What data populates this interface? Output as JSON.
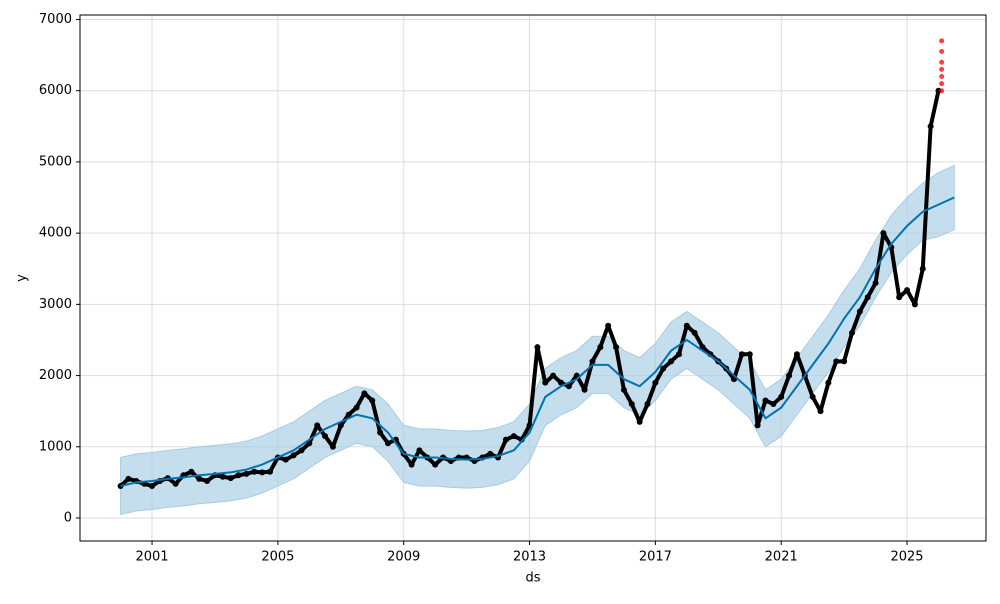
{
  "chart_data": {
    "type": "forecast",
    "xlabel": "ds",
    "ylabel": "y",
    "xlim": [
      1998.71,
      2027.51
    ],
    "ylim": [
      -323,
      7063
    ],
    "xticks": [
      2001,
      2005,
      2009,
      2013,
      2017,
      2021,
      2025
    ],
    "yticks": [
      0,
      1000,
      2000,
      3000,
      4000,
      5000,
      6000,
      7000
    ],
    "grid": true,
    "observed": {
      "color": "#000000",
      "x": [
        2000,
        2000.25,
        2000.5,
        2000.75,
        2001,
        2001.25,
        2001.5,
        2001.75,
        2002,
        2002.25,
        2002.5,
        2002.75,
        2003,
        2003.25,
        2003.5,
        2003.75,
        2004,
        2004.25,
        2004.5,
        2004.75,
        2005,
        2005.25,
        2005.5,
        2005.75,
        2006,
        2006.25,
        2006.5,
        2006.75,
        2007,
        2007.25,
        2007.5,
        2007.75,
        2008,
        2008.25,
        2008.5,
        2008.75,
        2009,
        2009.25,
        2009.5,
        2009.75,
        2010,
        2010.25,
        2010.5,
        2010.75,
        2011,
        2011.25,
        2011.5,
        2011.75,
        2012,
        2012.25,
        2012.5,
        2012.75,
        2013,
        2013.25,
        2013.5,
        2013.75,
        2014,
        2014.25,
        2014.5,
        2014.75,
        2015,
        2015.25,
        2015.5,
        2015.75,
        2016,
        2016.25,
        2016.5,
        2016.75,
        2017,
        2017.25,
        2017.5,
        2017.75,
        2018,
        2018.25,
        2018.5,
        2018.75,
        2019,
        2019.25,
        2019.5,
        2019.75,
        2020,
        2020.25,
        2020.5,
        2020.75,
        2021,
        2021.25,
        2021.5,
        2021.75,
        2022,
        2022.25,
        2022.5,
        2022.75,
        2023,
        2023.25,
        2023.5,
        2023.75,
        2024,
        2024.25,
        2024.5,
        2024.75,
        2025,
        2025.25,
        2025.5,
        2025.75,
        2026
      ],
      "values": [
        450,
        550,
        520,
        480,
        450,
        520,
        560,
        480,
        600,
        650,
        550,
        520,
        600,
        580,
        560,
        600,
        620,
        650,
        640,
        650,
        850,
        820,
        880,
        950,
        1050,
        1300,
        1150,
        1000,
        1300,
        1450,
        1550,
        1750,
        1650,
        1200,
        1050,
        1100,
        900,
        750,
        950,
        850,
        750,
        850,
        800,
        850,
        850,
        800,
        850,
        900,
        850,
        1100,
        1150,
        1100,
        1300,
        2400,
        1900,
        2000,
        1900,
        1850,
        2000,
        1800,
        2200,
        2400,
        2700,
        2400,
        1800,
        1600,
        1350,
        1600,
        1900,
        2100,
        2200,
        2300,
        2700,
        2600,
        2400,
        2300,
        2200,
        2100,
        1950,
        2300,
        2300,
        1300,
        1650,
        1600,
        1700,
        2000,
        2300,
        2000,
        1700,
        1500,
        1900,
        2200,
        2200,
        2600,
        2900,
        3100,
        3300,
        4000,
        3800,
        3100,
        3200,
        3000,
        3500,
        5500,
        6000
      ]
    },
    "forecast": {
      "color": "#0072B2",
      "band_color": "#a6cce3",
      "x": [
        2000,
        2000.5,
        2001,
        2001.5,
        2002,
        2002.5,
        2003,
        2003.5,
        2004,
        2004.5,
        2005,
        2005.5,
        2006,
        2006.5,
        2007,
        2007.5,
        2008,
        2008.5,
        2009,
        2009.5,
        2010,
        2010.5,
        2011,
        2011.5,
        2012,
        2012.5,
        2013,
        2013.5,
        2014,
        2014.5,
        2015,
        2015.5,
        2016,
        2016.5,
        2017,
        2017.5,
        2018,
        2018.5,
        2019,
        2019.5,
        2020,
        2020.5,
        2021,
        2021.5,
        2022,
        2022.5,
        2023,
        2023.5,
        2024,
        2024.5,
        2025,
        2025.5,
        2026,
        2026.5
      ],
      "values": [
        450,
        500,
        520,
        550,
        570,
        600,
        620,
        640,
        680,
        750,
        850,
        950,
        1100,
        1250,
        1350,
        1450,
        1400,
        1200,
        900,
        850,
        850,
        830,
        820,
        830,
        870,
        950,
        1200,
        1700,
        1850,
        1950,
        2150,
        2150,
        1950,
        1850,
        2050,
        2350,
        2500,
        2350,
        2200,
        2000,
        1800,
        1400,
        1550,
        1850,
        2150,
        2450,
        2800,
        3100,
        3500,
        3850,
        4100,
        4300,
        4400,
        4500
      ],
      "lower": [
        50,
        100,
        120,
        150,
        170,
        200,
        220,
        240,
        280,
        350,
        450,
        550,
        700,
        850,
        950,
        1050,
        1000,
        800,
        500,
        450,
        450,
        430,
        420,
        430,
        470,
        550,
        800,
        1300,
        1450,
        1550,
        1750,
        1750,
        1550,
        1450,
        1650,
        1950,
        2100,
        1950,
        1800,
        1600,
        1400,
        1000,
        1150,
        1450,
        1750,
        2050,
        2400,
        2700,
        3100,
        3450,
        3700,
        3900,
        3950,
        4050
      ],
      "upper": [
        850,
        900,
        920,
        950,
        970,
        1000,
        1020,
        1040,
        1080,
        1150,
        1250,
        1350,
        1500,
        1650,
        1750,
        1850,
        1800,
        1600,
        1300,
        1250,
        1250,
        1230,
        1220,
        1230,
        1270,
        1350,
        1600,
        2100,
        2250,
        2350,
        2550,
        2550,
        2350,
        2250,
        2450,
        2750,
        2900,
        2750,
        2600,
        2400,
        2200,
        1800,
        1950,
        2250,
        2550,
        2850,
        3200,
        3500,
        3900,
        4250,
        4500,
        4700,
        4850,
        4950
      ]
    },
    "future": {
      "color": "#ff0000",
      "x": [
        2026.1,
        2026.1,
        2026.1,
        2026.1,
        2026.1,
        2026.1,
        2026.1
      ],
      "values": [
        6000,
        6100,
        6200,
        6300,
        6400,
        6550,
        6700
      ]
    }
  }
}
